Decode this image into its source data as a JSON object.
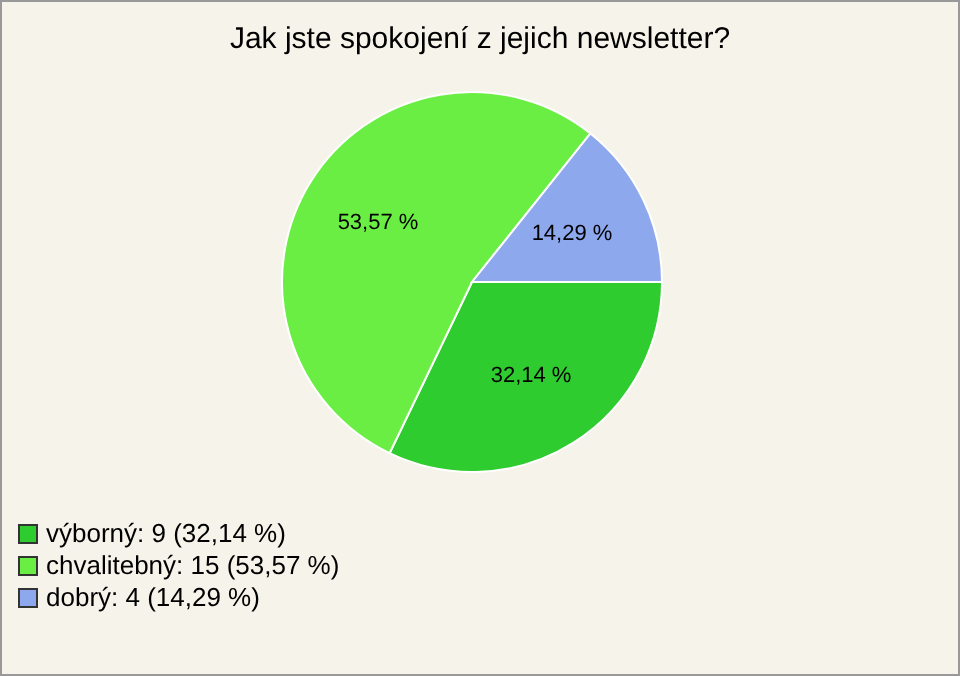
{
  "chart_data": {
    "type": "pie",
    "title": "Jak jste spokojení z jejich newsletter?",
    "categories": [
      "výborný: 9 (32,14 %)",
      "chvalitebný: 15 (53,57 %)",
      "dobrý: 4 (14,29 %)"
    ],
    "values": [
      32.14,
      53.57,
      14.29
    ],
    "value_labels": [
      "32,14 %",
      "53,57 %",
      "14,29 %"
    ],
    "colors": [
      "#2ecc2e",
      "#6aee44",
      "#8ea8ee"
    ],
    "legend": "bottom left"
  }
}
